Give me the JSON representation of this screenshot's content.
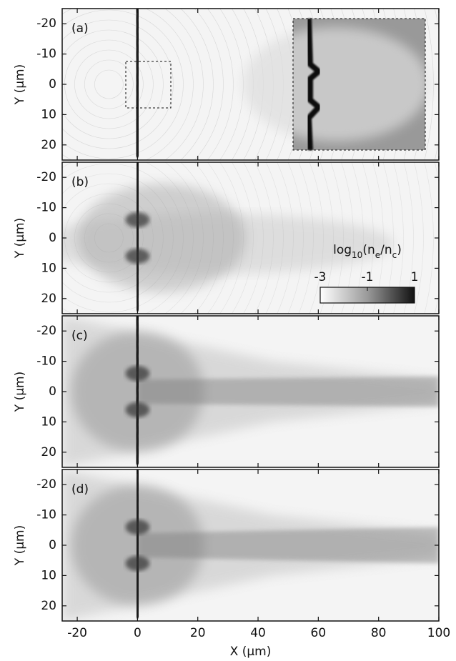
{
  "chart_data": [
    {
      "type": "heatmap",
      "label": "(a)",
      "ylabel": "Y (µm)",
      "xlim": [
        -25,
        100
      ],
      "xticks": [
        -20,
        0,
        20,
        40,
        60,
        80,
        100
      ],
      "ylim": [
        -25,
        25
      ],
      "yticks": [
        -20,
        -10,
        0,
        10,
        20
      ],
      "y_inverted": true
    },
    {
      "type": "heatmap",
      "label": "(b)",
      "ylabel": "Y (µm)",
      "xlim": [
        -25,
        100
      ],
      "xticks": [
        -20,
        0,
        20,
        40,
        60,
        80,
        100
      ],
      "ylim": [
        -25,
        25
      ],
      "yticks": [
        -20,
        -10,
        0,
        10,
        20
      ],
      "y_inverted": true,
      "colorbar": {
        "label_parts": [
          "log",
          "10",
          "(n",
          "e",
          "/n",
          "c",
          ")"
        ],
        "lim": [
          -3,
          1
        ],
        "ticks": [
          -3,
          -1,
          1
        ]
      }
    },
    {
      "type": "heatmap",
      "label": "(c)",
      "ylabel": "Y (µm)",
      "xlim": [
        -25,
        100
      ],
      "xticks": [
        -20,
        0,
        20,
        40,
        60,
        80,
        100
      ],
      "ylim": [
        -25,
        25
      ],
      "yticks": [
        -20,
        -10,
        0,
        10,
        20
      ],
      "y_inverted": true
    },
    {
      "type": "heatmap",
      "label": "(d)",
      "ylabel": "Y (µm)",
      "xlabel": "X (µm)",
      "xlim": [
        -25,
        100
      ],
      "xticks": [
        -20,
        0,
        20,
        40,
        60,
        80,
        100
      ],
      "ylim": [
        -25,
        25
      ],
      "yticks": [
        -20,
        -10,
        0,
        10,
        20
      ],
      "y_inverted": true
    }
  ]
}
